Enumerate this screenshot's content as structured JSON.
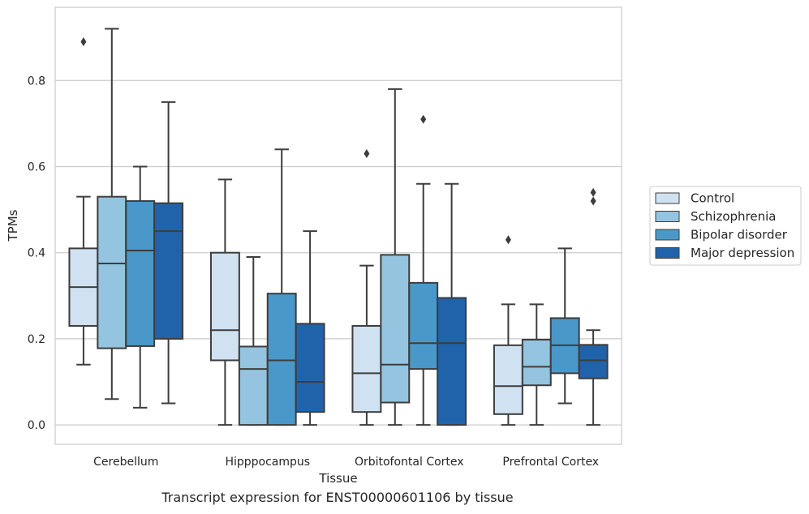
{
  "caption": "Transcript expression for ENST00000601106 by tissue",
  "chart_data": {
    "type": "box",
    "xlabel": "Tissue",
    "ylabel": "TPMs",
    "ylim": [
      -0.045,
      0.97
    ],
    "yticks": [
      0.0,
      0.2,
      0.4,
      0.6,
      0.8
    ],
    "ytick_labels": [
      "0.0",
      "0.2",
      "0.4",
      "0.6",
      "0.8"
    ],
    "grid": "horizontal",
    "legend_position": "right",
    "categories": [
      "Cerebellum",
      "Hipppocampus",
      "Orbitofontal Cortex",
      "Prefrontal Cortex"
    ],
    "series": [
      {
        "name": "Control",
        "color": "#d0e1f2",
        "boxes": [
          {
            "whislo": 0.14,
            "q1": 0.23,
            "med": 0.32,
            "q3": 0.41,
            "whishi": 0.53,
            "fliers": [
              0.89
            ]
          },
          {
            "whislo": 0.0,
            "q1": 0.15,
            "med": 0.22,
            "q3": 0.4,
            "whishi": 0.57,
            "fliers": []
          },
          {
            "whislo": 0.0,
            "q1": 0.03,
            "med": 0.12,
            "q3": 0.23,
            "whishi": 0.37,
            "fliers": [
              0.63
            ]
          },
          {
            "whislo": 0.0,
            "q1": 0.025,
            "med": 0.09,
            "q3": 0.185,
            "whishi": 0.28,
            "fliers": [
              0.43
            ]
          }
        ]
      },
      {
        "name": "Schizophrenia",
        "color": "#94c4df",
        "boxes": [
          {
            "whislo": 0.06,
            "q1": 0.178,
            "med": 0.375,
            "q3": 0.53,
            "whishi": 0.92,
            "fliers": []
          },
          {
            "whislo": 0.0,
            "q1": 0.0,
            "med": 0.13,
            "q3": 0.182,
            "whishi": 0.39,
            "fliers": []
          },
          {
            "whislo": 0.0,
            "q1": 0.052,
            "med": 0.14,
            "q3": 0.395,
            "whishi": 0.78,
            "fliers": []
          },
          {
            "whislo": 0.0,
            "q1": 0.092,
            "med": 0.135,
            "q3": 0.198,
            "whishi": 0.28,
            "fliers": []
          }
        ]
      },
      {
        "name": "Bipolar disorder",
        "color": "#4a98c9",
        "boxes": [
          {
            "whislo": 0.04,
            "q1": 0.183,
            "med": 0.405,
            "q3": 0.52,
            "whishi": 0.6,
            "fliers": []
          },
          {
            "whislo": 0.0,
            "q1": 0.0,
            "med": 0.15,
            "q3": 0.305,
            "whishi": 0.64,
            "fliers": []
          },
          {
            "whislo": 0.0,
            "q1": 0.13,
            "med": 0.19,
            "q3": 0.33,
            "whishi": 0.56,
            "fliers": [
              0.71
            ]
          },
          {
            "whislo": 0.05,
            "q1": 0.12,
            "med": 0.185,
            "q3": 0.248,
            "whishi": 0.41,
            "fliers": []
          }
        ]
      },
      {
        "name": "Major depression",
        "color": "#2163aa",
        "boxes": [
          {
            "whislo": 0.05,
            "q1": 0.2,
            "med": 0.45,
            "q3": 0.515,
            "whishi": 0.75,
            "fliers": []
          },
          {
            "whislo": 0.0,
            "q1": 0.03,
            "med": 0.1,
            "q3": 0.235,
            "whishi": 0.45,
            "fliers": []
          },
          {
            "whislo": 0.0,
            "q1": 0.0,
            "med": 0.19,
            "q3": 0.295,
            "whishi": 0.56,
            "fliers": []
          },
          {
            "whislo": 0.0,
            "q1": 0.108,
            "med": 0.15,
            "q3": 0.186,
            "whishi": 0.22,
            "fliers": [
              0.52,
              0.54
            ]
          }
        ]
      }
    ]
  }
}
